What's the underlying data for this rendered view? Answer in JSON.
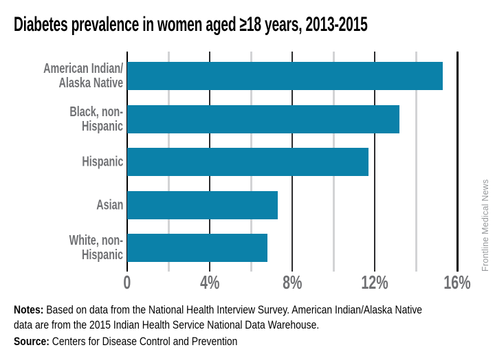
{
  "title": "Diabetes prevalence in women aged ≥18 years, 2013-2015",
  "credit": "Frontline Medical News",
  "notes": {
    "label": "Notes:",
    "line1": " Based on data from the National Health Interview Survey. American Indian/Alaska Native",
    "line2": "data are from the 2015 Indian Health Service National Data Warehouse."
  },
  "source": {
    "label": "Source:",
    "text": " Centers for Disease Control and Prevention"
  },
  "chart_data": {
    "type": "bar",
    "orientation": "horizontal",
    "title": "Diabetes prevalence in women aged ≥18 years, 2013-2015",
    "categories": [
      [
        "American Indian/",
        "Alaska Native"
      ],
      [
        "Black, non-Hispanic"
      ],
      [
        "Hispanic"
      ],
      [
        "Asian"
      ],
      [
        "White, non-Hispanic"
      ]
    ],
    "values": [
      15.3,
      13.2,
      11.7,
      7.3,
      6.8
    ],
    "unit": "%",
    "xlabel": "",
    "ylabel": "",
    "xlim": [
      0,
      16
    ],
    "x_major_ticks": [
      {
        "value": 0,
        "label": "0"
      },
      {
        "value": 4,
        "label": "4%"
      },
      {
        "value": 8,
        "label": "8%"
      },
      {
        "value": 12,
        "label": "12%"
      },
      {
        "value": 16,
        "label": "16%"
      }
    ],
    "x_minor_gridlines": [
      2,
      6,
      10,
      14
    ],
    "grid": "vertical",
    "legend": "none",
    "bars_drawn_over_gridlines": true
  },
  "colors": {
    "bar": "#0b81a9",
    "axis_line": "#000000",
    "major_gridline": "#2b2b2d",
    "minor_gridline": "#d2d3d5",
    "category_label": "#6f7073",
    "tick_label": "#6f7073",
    "credit_text": "#96989b",
    "title_text": "#000000",
    "background": "#ffffff"
  }
}
